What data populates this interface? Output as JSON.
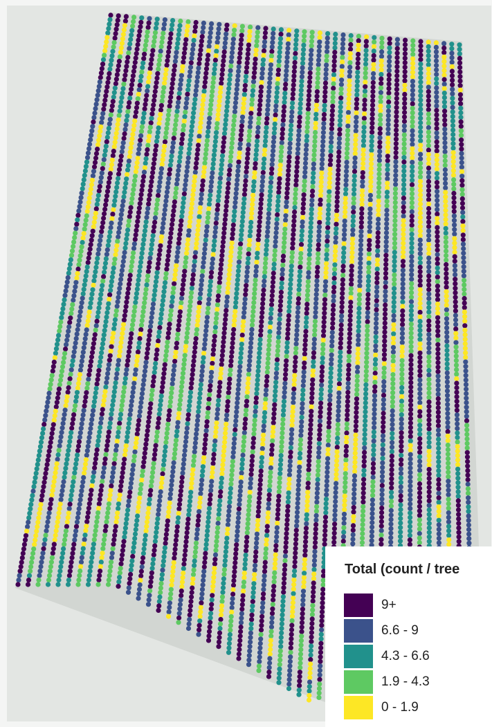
{
  "legend": {
    "title": "Total (count / tree",
    "items": [
      {
        "label": "9+",
        "color": "#440154"
      },
      {
        "label": "6.6 - 9",
        "color": "#3b528b"
      },
      {
        "label": "4.3 - 6.6",
        "color": "#21918c"
      },
      {
        "label": "1.9 - 4.3",
        "color": "#5ec962"
      },
      {
        "label": "0 - 1.9",
        "color": "#fde725"
      }
    ]
  }
}
